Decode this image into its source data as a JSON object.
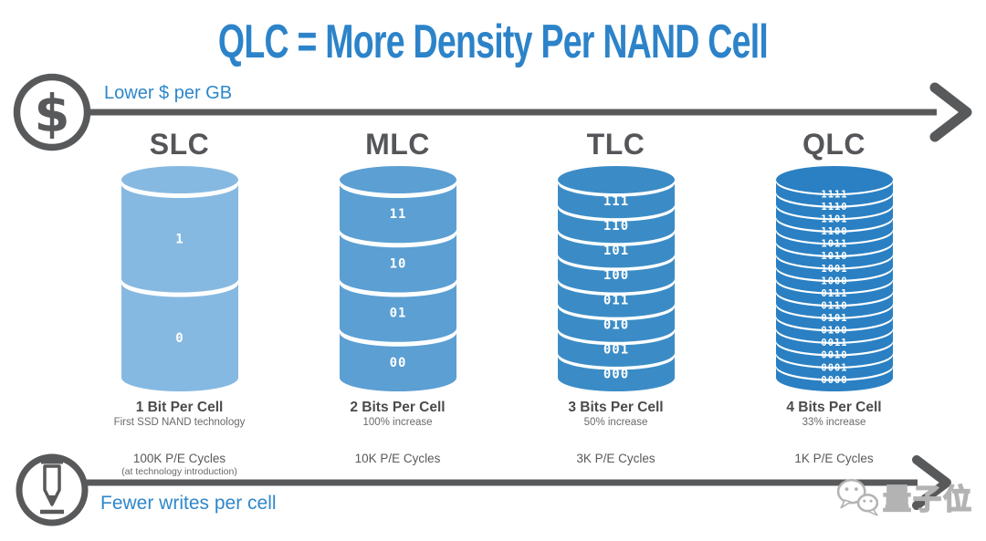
{
  "title": "QLC = More Density Per NAND Cell",
  "top_axis": {
    "label": "Lower $ per GB",
    "icon": "dollar-icon"
  },
  "bottom_axis": {
    "label": "Fewer writes per cell",
    "icon": "pen-icon"
  },
  "icons": {
    "dollar_glyph": "$"
  },
  "colors": {
    "accent_title": "#2C83C9",
    "accent_axis_label": "#2E87CB",
    "arrow_gray": "#58595B",
    "header_gray": "#55565A",
    "slc_blue": "#86B9E1",
    "mlc_blue": "#5B9FD3",
    "tlc_blue": "#3B8CC6",
    "qlc_blue": "#2A80C3",
    "cell_label_white": "#FFFFFF"
  },
  "columns": [
    {
      "name": "SLC",
      "color": "#86B9E1",
      "levels": [
        "1",
        "0"
      ],
      "caption": "1 Bit Per Cell",
      "subcaption": "First SSD NAND technology",
      "pe_cycles": "100K P/E Cycles",
      "pe_note": "(at technology introduction)"
    },
    {
      "name": "MLC",
      "color": "#5B9FD3",
      "levels": [
        "11",
        "10",
        "01",
        "00"
      ],
      "caption": "2 Bits Per Cell",
      "subcaption": "100% increase",
      "pe_cycles": "10K P/E Cycles",
      "pe_note": ""
    },
    {
      "name": "TLC",
      "color": "#3B8CC6",
      "levels": [
        "111",
        "110",
        "101",
        "100",
        "011",
        "010",
        "001",
        "000"
      ],
      "caption": "3 Bits Per Cell",
      "subcaption": "50% increase",
      "pe_cycles": "3K P/E Cycles",
      "pe_note": ""
    },
    {
      "name": "QLC",
      "color": "#2A80C3",
      "levels": [
        "1111",
        "1110",
        "1101",
        "1100",
        "1011",
        "1010",
        "1001",
        "1000",
        "0111",
        "0110",
        "0101",
        "0100",
        "0011",
        "0010",
        "0001",
        "0000"
      ],
      "caption": "4 Bits Per Cell",
      "subcaption": "33% increase",
      "pe_cycles": "1K P/E Cycles",
      "pe_note": ""
    }
  ],
  "watermark": {
    "text": "量子位",
    "icon": "wechat-icon"
  }
}
